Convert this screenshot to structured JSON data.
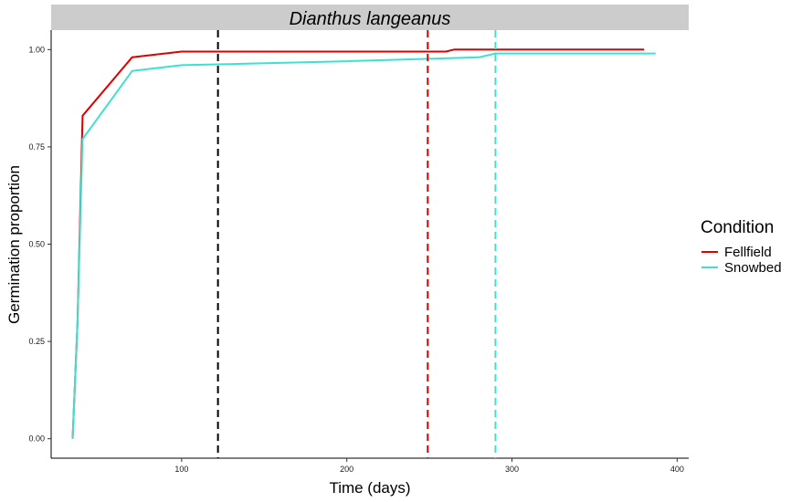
{
  "chart_data": {
    "type": "line",
    "title": "Dianthus langeanus",
    "xlabel": "Time (days)",
    "ylabel": "Germination proportion",
    "xlim": [
      21,
      407
    ],
    "ylim": [
      -0.05,
      1.05
    ],
    "xticks": [
      100,
      200,
      300,
      400
    ],
    "xtick_labels": [
      "100",
      "200",
      "300",
      "400"
    ],
    "yticks": [
      0,
      0.25,
      0.5,
      0.75,
      1.0
    ],
    "ytick_labels": [
      "0.00",
      "0.25",
      "0.50",
      "0.75",
      "1.00"
    ],
    "grid": false,
    "legend": {
      "title": "Condition",
      "position": "right"
    },
    "series": [
      {
        "name": "Fellfield",
        "color": "#e00000",
        "points": [
          [
            34,
            0.0
          ],
          [
            37,
            0.3
          ],
          [
            40,
            0.83
          ],
          [
            70,
            0.98
          ],
          [
            100,
            0.995
          ],
          [
            200,
            0.995
          ],
          [
            260,
            0.995
          ],
          [
            265,
            1.0
          ],
          [
            380,
            1.0
          ]
        ]
      },
      {
        "name": "Snowbed",
        "color": "#40e0d0",
        "points": [
          [
            34,
            0.0
          ],
          [
            37,
            0.3
          ],
          [
            40,
            0.77
          ],
          [
            70,
            0.945
          ],
          [
            100,
            0.96
          ],
          [
            200,
            0.97
          ],
          [
            280,
            0.98
          ],
          [
            290,
            0.99
          ],
          [
            387,
            0.99
          ]
        ]
      }
    ],
    "vlines": [
      {
        "x": 122,
        "color": "#000000"
      },
      {
        "x": 249,
        "color": "#e00000"
      },
      {
        "x": 290,
        "color": "#40e0d0"
      }
    ]
  }
}
